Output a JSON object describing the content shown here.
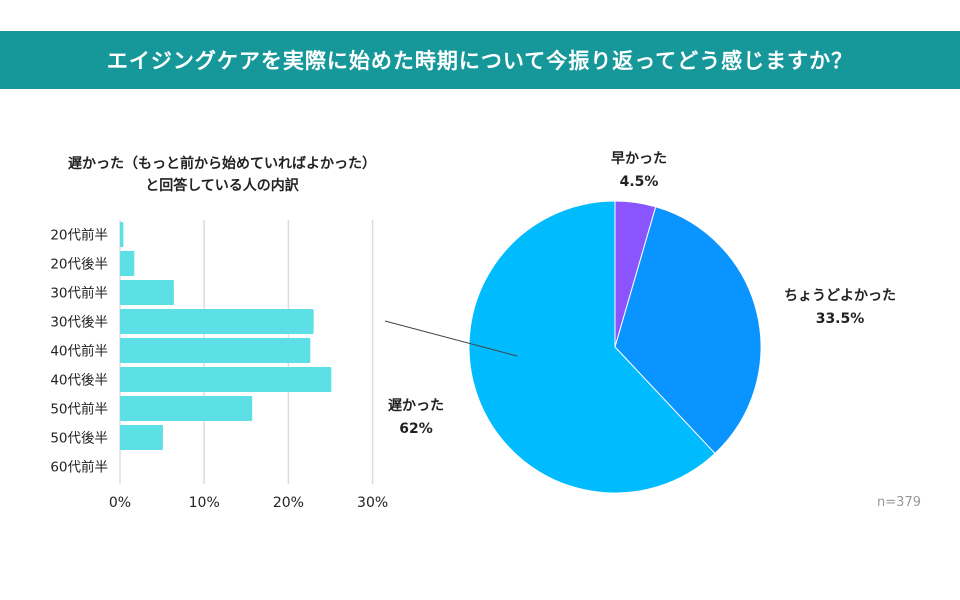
{
  "title": "エイジングケアを実際に始めた時期について今振り返ってどう感じますか？",
  "n_label": "n=379",
  "chart_data": [
    {
      "type": "pie",
      "slices": [
        {
          "label": "早かった",
          "value": 4.5,
          "value_label": "4.5%",
          "color": "#8a55ff"
        },
        {
          "label": "ちょうどよかった",
          "value": 33.5,
          "value_label": "33.5%",
          "color": "#0a94ff"
        },
        {
          "label": "遅かった",
          "value": 62,
          "value_label": "62%",
          "color": "#00bbfd"
        }
      ],
      "start": "top",
      "direction": "clockwise"
    },
    {
      "type": "bar",
      "orientation": "horizontal",
      "title_lines": [
        "遅かった（もっと前から始めていればよかった）",
        "と回答している人の内訳"
      ],
      "categories": [
        "20代前半",
        "20代後半",
        "30代前半",
        "30代後半",
        "40代前半",
        "40代後半",
        "50代前半",
        "50代後半",
        "60代前半"
      ],
      "values": [
        0.4,
        1.7,
        6.4,
        23.0,
        22.6,
        25.1,
        15.7,
        5.1,
        0
      ],
      "xlim": [
        0,
        30
      ],
      "xticks": [
        "0%",
        "10%",
        "20%",
        "30%"
      ],
      "grid": true,
      "color": "#5ce0e6"
    }
  ]
}
